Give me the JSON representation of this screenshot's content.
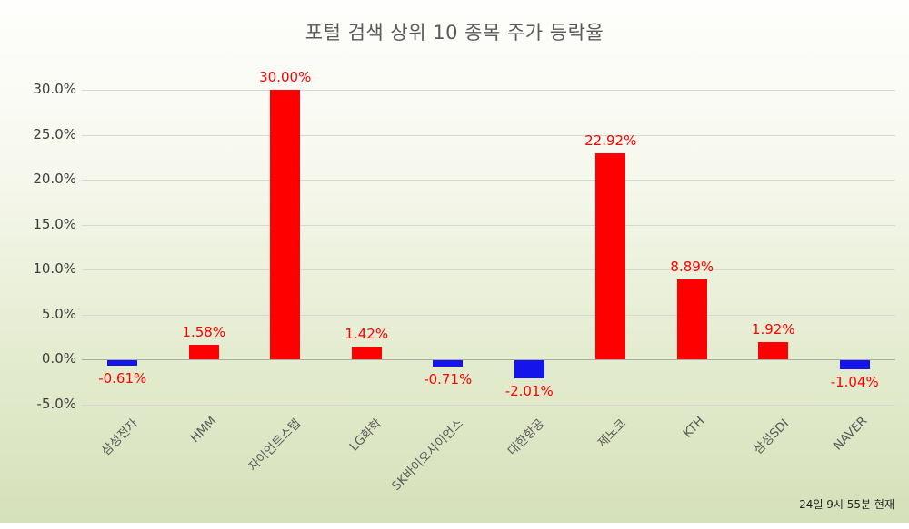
{
  "chart": {
    "title": "포털 검색 상위 10 종목 주가 등락율",
    "footer": "24일 9시 55분 현재"
  },
  "chart_data": {
    "type": "bar",
    "title": "포털 검색 상위 10 종목 주가 등락율",
    "categories": [
      "삼성전자",
      "HMM",
      "자이언트스텝",
      "LG화학",
      "SK바이오사이언스",
      "대한항공",
      "제노코",
      "KTH",
      "삼성SDI",
      "NAVER"
    ],
    "values": [
      -0.61,
      1.58,
      30.0,
      1.42,
      -0.71,
      -2.01,
      22.92,
      8.89,
      1.92,
      -1.04
    ],
    "value_labels": [
      "-0.61%",
      "1.58%",
      "30.00%",
      "1.42%",
      "-0.71%",
      "-2.01%",
      "22.92%",
      "8.89%",
      "1.92%",
      "-1.04%"
    ],
    "xlabel": "",
    "ylabel": "",
    "ylim": [
      -5,
      30
    ],
    "yticks": [
      30,
      25,
      20,
      15,
      10,
      5,
      0,
      -5
    ],
    "ytick_labels": [
      "30.0%",
      "25.0%",
      "20.0%",
      "15.0%",
      "10.0%",
      "5.0%",
      "0.0%",
      "-5.0%"
    ],
    "grid": true,
    "legend": "none",
    "positive_color": "#ff0000",
    "negative_color": "#1414eb",
    "label_color": "#ff0000",
    "annotation": "24일 9시 55분 현재"
  }
}
